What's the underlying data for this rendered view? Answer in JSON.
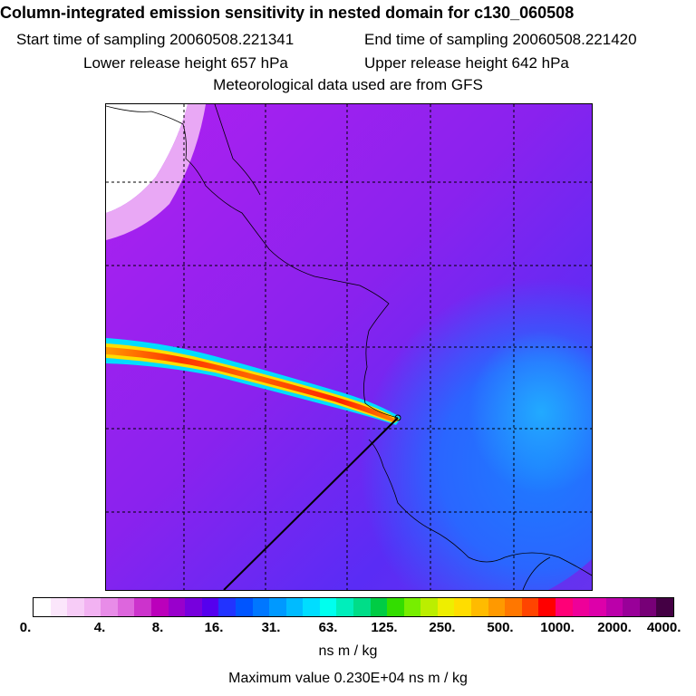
{
  "header": {
    "title": "Column-integrated emission sensitivity in nested domain for c130_060508",
    "start_label": "Start time of sampling 20060508.221341",
    "end_label": "End time of sampling 20060508.221420",
    "lower_label": "Lower release height  657 hPa",
    "upper_label": "Upper release height  642 hPa",
    "met_label": "Meteorological data used are from GFS"
  },
  "colorbar": {
    "colors": [
      "#ffffff",
      "#fbe6fb",
      "#f7ccf7",
      "#f2b2f2",
      "#e88ce8",
      "#dd66dd",
      "#cc33cc",
      "#bb00bb",
      "#9900cc",
      "#7700dd",
      "#5500ee",
      "#2233ff",
      "#0055ff",
      "#0077ff",
      "#0099ff",
      "#00bbff",
      "#00ddff",
      "#00ffee",
      "#00eebb",
      "#00dd88",
      "#00cc44",
      "#33dd00",
      "#77ee00",
      "#bbee00",
      "#eeee00",
      "#ffdd00",
      "#ffbb00",
      "#ff9900",
      "#ff7700",
      "#ff4400",
      "#ff0000",
      "#ff0077",
      "#ee0099",
      "#dd00aa",
      "#bb00aa",
      "#990099",
      "#770077",
      "#440044"
    ],
    "tick_labels": [
      "0.",
      "4.",
      "8.",
      "16.",
      "31.",
      "63.",
      "125.",
      "250.",
      "500.",
      "1000.",
      "2000.",
      "4000."
    ],
    "units": "ns m / kg",
    "max_value_label": "Maximum value  0.230E+04 ns m / kg"
  },
  "map": {
    "background_color": "#8a2be2",
    "plume_peak_color": "#ff2200",
    "coast_color": "#000000",
    "grid_style": "dashed",
    "plume_direction": "west-northwest from release point"
  }
}
